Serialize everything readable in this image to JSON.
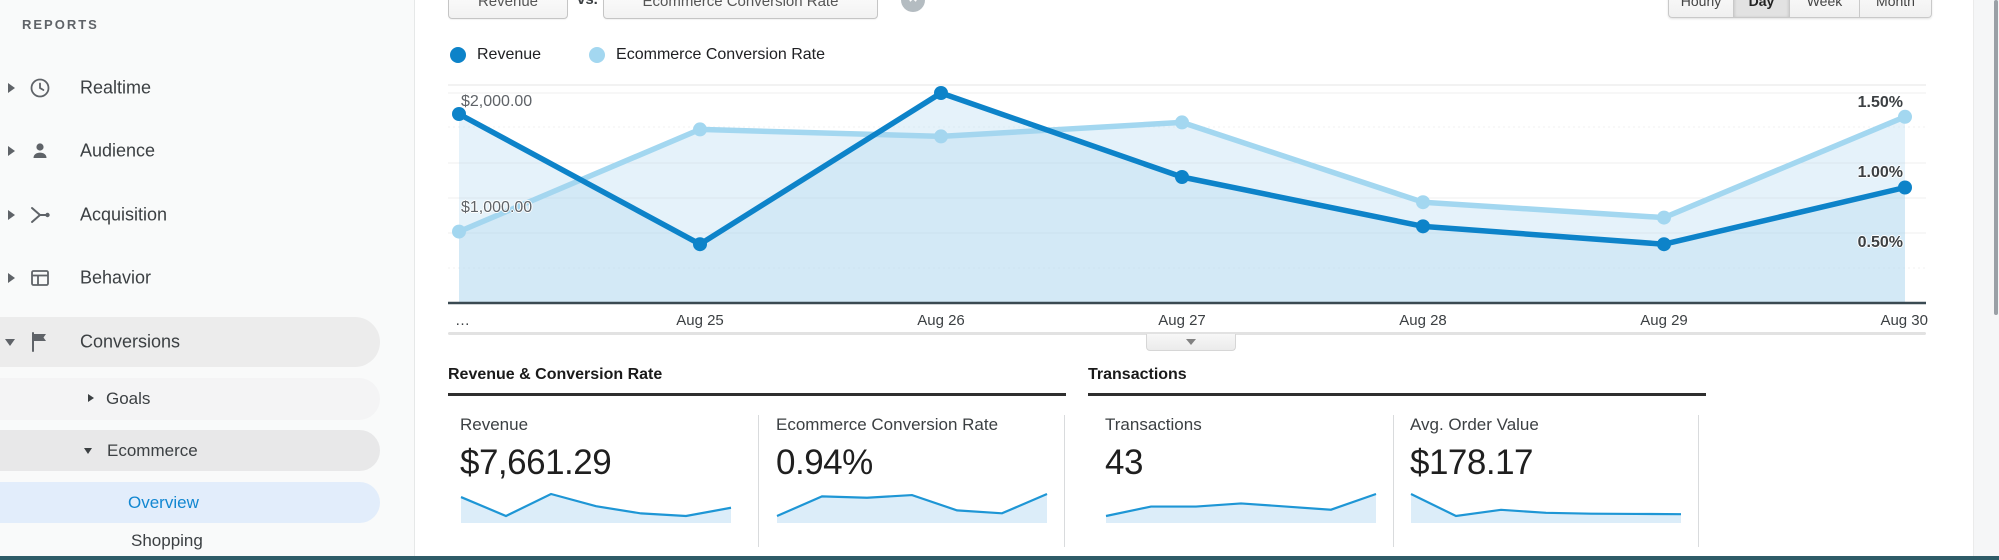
{
  "sidebar": {
    "section_label": "REPORTS",
    "items": [
      {
        "label": "Realtime",
        "icon": "clock-icon",
        "state": "collapsed"
      },
      {
        "label": "Audience",
        "icon": "person-icon",
        "state": "collapsed"
      },
      {
        "label": "Acquisition",
        "icon": "acquisition-icon",
        "state": "collapsed"
      },
      {
        "label": "Behavior",
        "icon": "behavior-icon",
        "state": "collapsed"
      },
      {
        "label": "Conversions",
        "icon": "flag-icon",
        "state": "expanded",
        "highlighted": true
      }
    ],
    "sub_items": [
      {
        "label": "Goals",
        "state": "collapsed"
      },
      {
        "label": "Ecommerce",
        "state": "expanded",
        "highlighted": true
      },
      {
        "label": "Overview",
        "selected": true
      },
      {
        "label": "Shopping"
      }
    ],
    "selected_color": "#1287d1"
  },
  "toolbar": {
    "metric_selector_1": "Revenue",
    "vs_label": "vs.",
    "metric_selector_2": "Ecommerce Conversion Rate",
    "remove_metric_label": "×",
    "granularity_buttons": [
      "Hourly",
      "Day",
      "Week",
      "Month"
    ],
    "granularity_selected": "Day"
  },
  "legend": [
    {
      "label": "Revenue",
      "color": "#0d83c9"
    },
    {
      "label": "Ecommerce Conversion Rate",
      "color": "#a3d7f0"
    }
  ],
  "chart_data": {
    "type": "line",
    "x_labels": [
      "…",
      "Aug 25",
      "Aug 26",
      "Aug 27",
      "Aug 28",
      "Aug 29",
      "Aug 30"
    ],
    "series": [
      {
        "name": "Revenue",
        "axis": "left",
        "color": "#0d83c9",
        "values": [
          1800,
          560,
          2000,
          1200,
          730,
          560,
          1100
        ]
      },
      {
        "name": "Ecommerce Conversion Rate",
        "axis": "right",
        "color": "#a3d7f0",
        "values": [
          0.51,
          1.24,
          1.19,
          1.29,
          0.72,
          0.61,
          1.33
        ]
      }
    ],
    "left_axis": {
      "tick_labels": [
        "$2,000.00",
        "$1,000.00"
      ],
      "tick_values": [
        2000,
        1000
      ],
      "range": [
        0,
        2080
      ]
    },
    "right_axis": {
      "tick_labels": [
        "1.50%",
        "1.00%",
        "0.50%"
      ],
      "tick_values": [
        1.5,
        1.0,
        0.5
      ],
      "range": [
        0,
        1.56
      ]
    },
    "grid": true,
    "legend_position": "top-left",
    "area_fill": "rgba(168,212,238,0.30)"
  },
  "sections": [
    {
      "title": "Revenue & Conversion Rate",
      "cards": [
        {
          "label": "Revenue",
          "value": "$7,661.29",
          "sparkline": [
            1800,
            560,
            2000,
            1200,
            730,
            560,
            1100
          ]
        },
        {
          "label": "Ecommerce Conversion Rate",
          "value": "0.94%",
          "sparkline": [
            0.51,
            1.24,
            1.19,
            1.29,
            0.72,
            0.61,
            1.33
          ]
        }
      ]
    },
    {
      "title": "Transactions",
      "cards": [
        {
          "label": "Transactions",
          "value": "43",
          "sparkline": [
            3,
            6,
            6,
            7,
            6,
            5,
            10
          ]
        },
        {
          "label": "Avg. Order Value",
          "value": "$178.17",
          "sparkline": [
            265,
            105,
            150,
            128,
            122,
            120,
            118
          ]
        }
      ]
    }
  ],
  "sparkline_style": {
    "stroke": "#1e96d5",
    "fill": "#dcedf9"
  }
}
